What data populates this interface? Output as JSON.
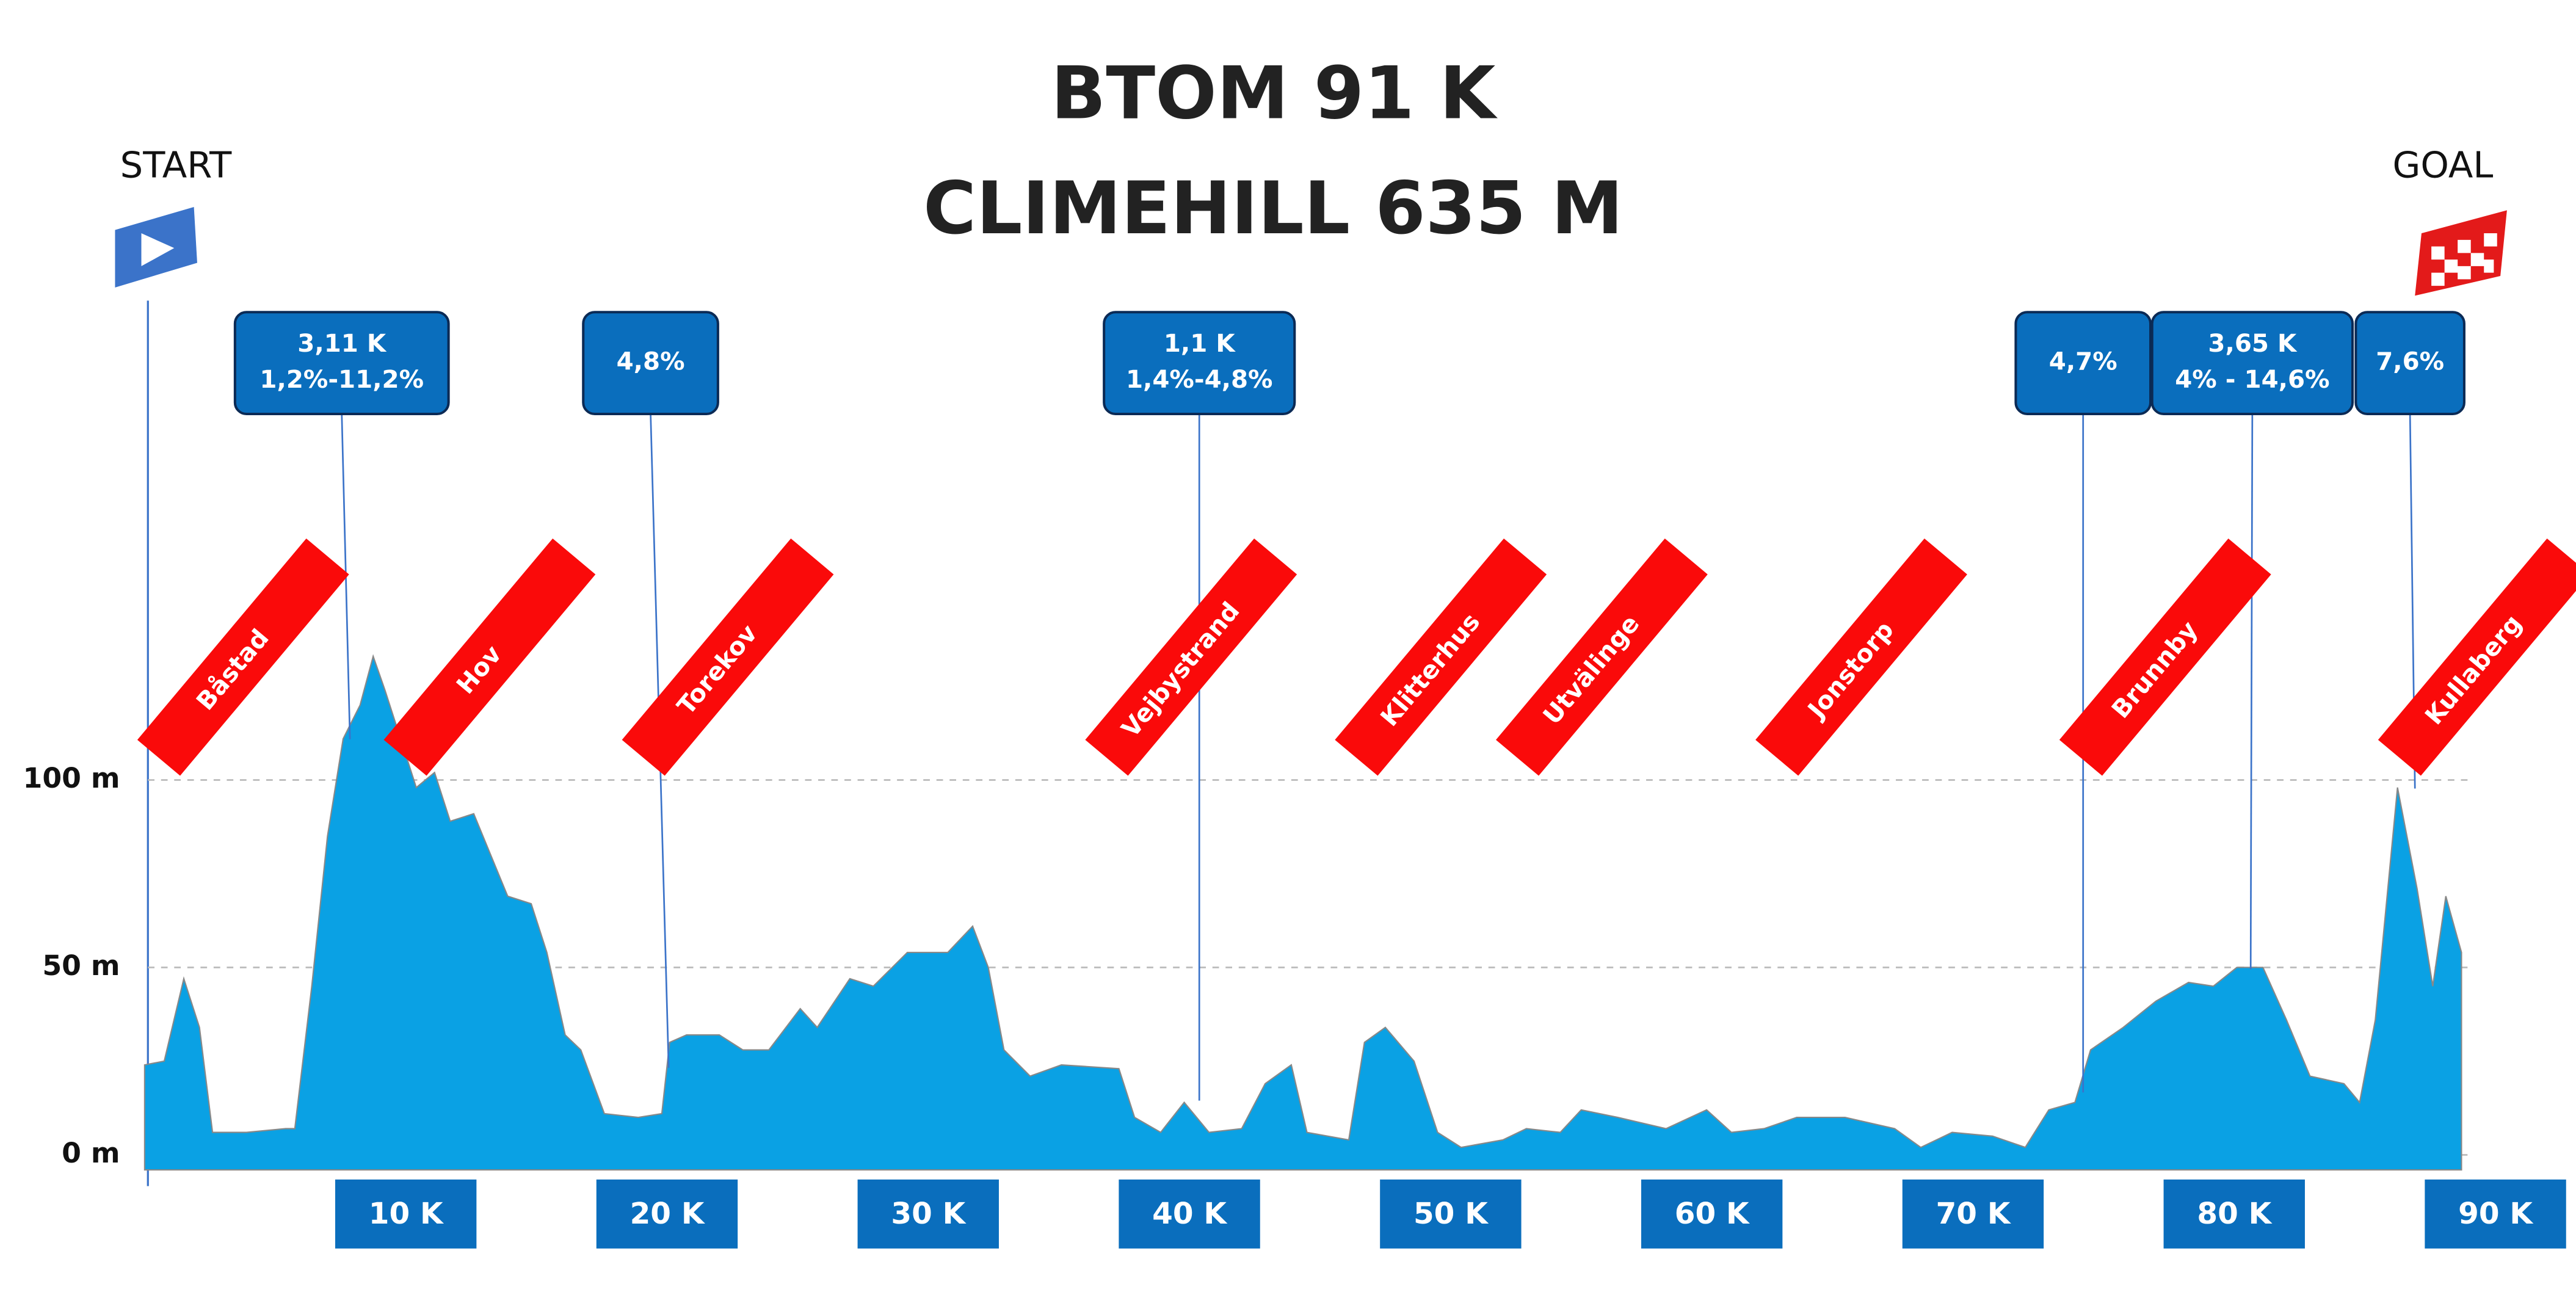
{
  "header": {
    "title": "BTOM 91 K",
    "subtitle": "CLIMEHILL 635 M",
    "start": "START",
    "goal": "GOAL"
  },
  "chart_data": {
    "type": "area",
    "color": "#0aa1e4",
    "grid": true,
    "x": [
      0,
      0.75,
      1.5,
      2.1,
      2.6,
      3.9,
      5.4,
      5.75,
      6.4,
      7,
      7.6,
      8.25,
      8.75,
      9.2,
      9.8,
      10.4,
      11.1,
      11.7,
      12.6,
      13.25,
      13.9,
      14.8,
      15.4,
      16.1,
      16.7,
      17.6,
      18.9,
      19.8,
      20.1,
      20.75,
      22,
      22.9,
      23.9,
      25.1,
      25.75,
      27,
      27.9,
      29.2,
      30.75,
      31.7,
      32.3,
      32.9,
      33.9,
      35.1,
      37.3,
      37.9,
      38.9,
      39.8,
      40.75,
      42,
      42.9,
      43.9,
      44.5,
      46.1,
      46.7,
      47.5,
      48.6,
      49.5,
      50.4,
      52,
      52.9,
      54.2,
      55,
      56.4,
      58.25,
      59.8,
      60.75,
      62,
      63.25,
      65.1,
      67,
      68,
      69.2,
      70.75,
      72,
      72.9,
      73.9,
      74.5,
      75.75,
      77,
      78.25,
      79.2,
      80.1,
      81.1,
      82,
      82.9,
      84.2,
      84.8,
      85.4,
      86.25,
      87,
      87.6,
      88.1,
      88.7
    ],
    "values": [
      24,
      25,
      47,
      34,
      6,
      6,
      7,
      7,
      45,
      85,
      111,
      120,
      133,
      124,
      111,
      98,
      102,
      89,
      91,
      80,
      69,
      67,
      54,
      32,
      28,
      11,
      10,
      11,
      30,
      32,
      32,
      28,
      28,
      39,
      34,
      47,
      45,
      54,
      54,
      61,
      50,
      28,
      21,
      24,
      23,
      10,
      6,
      14,
      6,
      7,
      19,
      24,
      6,
      4,
      30,
      34,
      25,
      6,
      2,
      4,
      7,
      6,
      12,
      10,
      7,
      12,
      6,
      7,
      10,
      10,
      7,
      2,
      6,
      5,
      2,
      12,
      14,
      28,
      34,
      41,
      46,
      45,
      50,
      50,
      36,
      21,
      19,
      14,
      36,
      98,
      71,
      45,
      69,
      54
    ],
    "xlim": [
      0,
      91
    ],
    "ylim": [
      -4,
      227
    ],
    "xticks": [
      {
        "value": 10,
        "label": "10 K"
      },
      {
        "value": 20,
        "label": "20 K"
      },
      {
        "value": 30,
        "label": "30 K"
      },
      {
        "value": 40,
        "label": "40 K"
      },
      {
        "value": 50,
        "label": "50 K"
      },
      {
        "value": 60,
        "label": "60 K"
      },
      {
        "value": 70,
        "label": "70 K"
      },
      {
        "value": 80,
        "label": "80 K"
      },
      {
        "value": 90,
        "label": "90 K"
      }
    ],
    "yticks": [
      {
        "value": 0,
        "label": "0 m"
      },
      {
        "value": 50,
        "label": "50 m"
      },
      {
        "value": 100,
        "label": "100 m"
      }
    ]
  },
  "climbs": [
    {
      "lines": [
        "3,11 K",
        "1,2%-11,2%"
      ]
    },
    {
      "lines": [
        "4,8%"
      ]
    },
    {
      "lines": [
        "1,1 K",
        "1,4%-4,8%"
      ]
    },
    {
      "lines": [
        "4,7%"
      ]
    },
    {
      "lines": [
        "3,65 K",
        "4% - 14,6%"
      ]
    },
    {
      "lines": [
        "7,6%"
      ]
    }
  ],
  "towns": [
    "Båstad",
    "Hov",
    "Torekov",
    "Vejbystrand",
    "Klitterhus",
    "Utvälinge",
    "Jonstorp",
    "Brunnby",
    "Kullaberg"
  ]
}
